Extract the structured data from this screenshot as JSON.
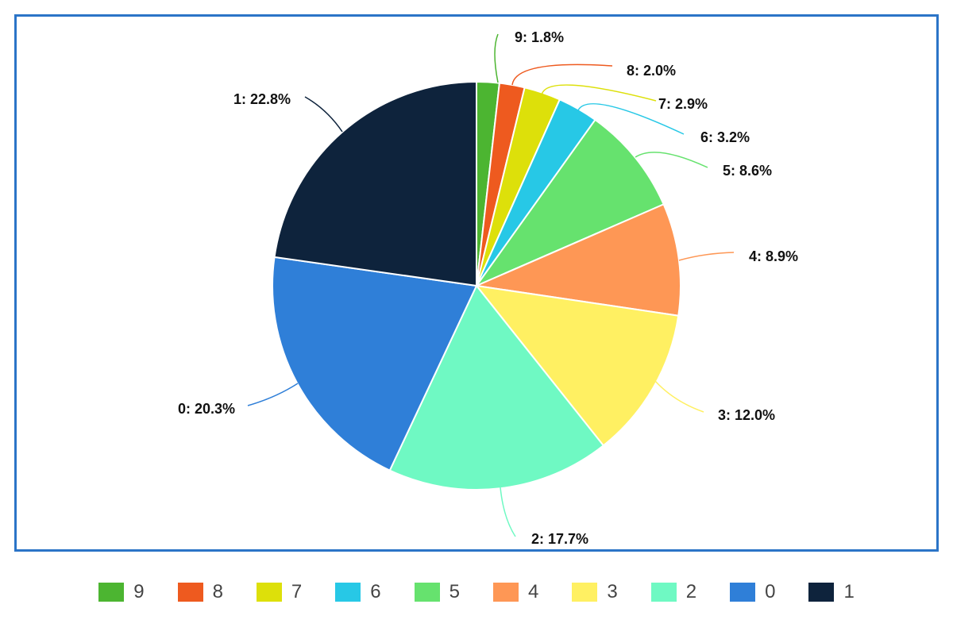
{
  "chart_data": {
    "type": "pie",
    "title": "",
    "slices": [
      {
        "name": "9",
        "value": 1.8,
        "label": "9: 1.8%",
        "color": "#4cb531"
      },
      {
        "name": "8",
        "value": 2.0,
        "label": "8: 2.0%",
        "color": "#ee5a1f"
      },
      {
        "name": "7",
        "value": 2.9,
        "label": "7: 2.9%",
        "color": "#dde00a"
      },
      {
        "name": "6",
        "value": 3.2,
        "label": "6: 3.2%",
        "color": "#27c8e6"
      },
      {
        "name": "5",
        "value": 8.6,
        "label": "5: 8.6%",
        "color": "#66e26e"
      },
      {
        "name": "4",
        "value": 8.9,
        "label": "4: 8.9%",
        "color": "#fe9755"
      },
      {
        "name": "3",
        "value": 12.0,
        "label": "3: 12.0%",
        "color": "#fff062"
      },
      {
        "name": "2",
        "value": 17.7,
        "label": "2: 17.7%",
        "color": "#6ff9c3"
      },
      {
        "name": "0",
        "value": 20.3,
        "label": "0: 20.3%",
        "color": "#2f7fd8"
      },
      {
        "name": "1",
        "value": 22.8,
        "label": "1: 22.8%",
        "color": "#0e233c"
      }
    ],
    "legend_position": "bottom"
  },
  "legend": {
    "items": [
      {
        "label": "9",
        "color": "#4cb531"
      },
      {
        "label": "8",
        "color": "#ee5a1f"
      },
      {
        "label": "7",
        "color": "#dde00a"
      },
      {
        "label": "6",
        "color": "#27c8e6"
      },
      {
        "label": "5",
        "color": "#66e26e"
      },
      {
        "label": "4",
        "color": "#fe9755"
      },
      {
        "label": "3",
        "color": "#fff062"
      },
      {
        "label": "2",
        "color": "#6ff9c3"
      },
      {
        "label": "0",
        "color": "#2f7fd8"
      },
      {
        "label": "1",
        "color": "#0e233c"
      }
    ]
  }
}
